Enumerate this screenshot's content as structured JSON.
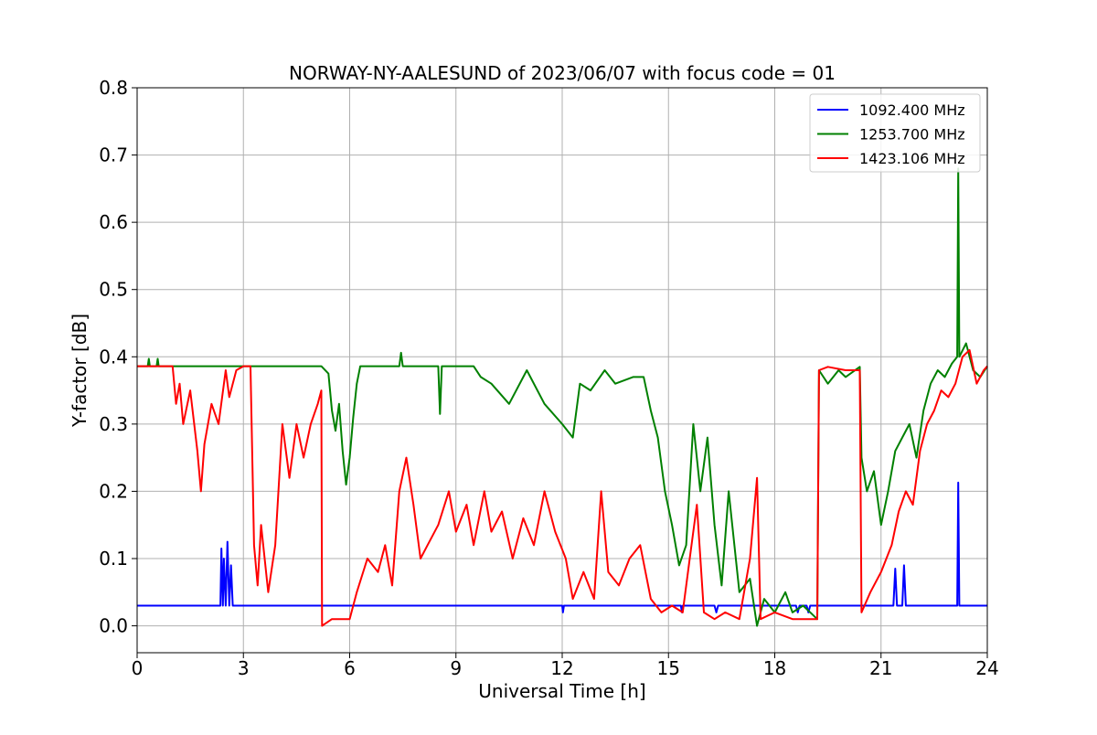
{
  "chart_data": {
    "type": "line",
    "title": "NORWAY-NY-AALESUND of 2023/06/07 with focus code = 01",
    "xlabel": "Universal Time [h]",
    "ylabel": "Y-factor [dB]",
    "xlim": [
      0,
      24
    ],
    "ylim": [
      -0.04,
      0.8
    ],
    "xticks": [
      0,
      3,
      6,
      9,
      12,
      15,
      18,
      21,
      24
    ],
    "yticks": [
      0.0,
      0.1,
      0.2,
      0.3,
      0.4,
      0.5,
      0.6,
      0.7,
      0.8
    ],
    "xtick_labels": [
      "0",
      "3",
      "6",
      "9",
      "12",
      "15",
      "18",
      "21",
      "24"
    ],
    "ytick_labels": [
      "0.0",
      "0.1",
      "0.2",
      "0.3",
      "0.4",
      "0.5",
      "0.6",
      "0.7",
      "0.8"
    ],
    "grid": true,
    "legend_position": "top-right",
    "series": [
      {
        "name": "1092.400 MHz",
        "color": "#0000ff",
        "points": [
          [
            0,
            0.03
          ],
          [
            2.35,
            0.03
          ],
          [
            2.38,
            0.115
          ],
          [
            2.42,
            0.03
          ],
          [
            2.45,
            0.1
          ],
          [
            2.5,
            0.03
          ],
          [
            2.55,
            0.125
          ],
          [
            2.6,
            0.03
          ],
          [
            2.65,
            0.09
          ],
          [
            2.7,
            0.03
          ],
          [
            12.0,
            0.03
          ],
          [
            12.02,
            0.02
          ],
          [
            12.05,
            0.03
          ],
          [
            15.35,
            0.03
          ],
          [
            15.38,
            0.02
          ],
          [
            15.4,
            0.03
          ],
          [
            16.3,
            0.03
          ],
          [
            16.35,
            0.02
          ],
          [
            16.4,
            0.03
          ],
          [
            18.6,
            0.03
          ],
          [
            18.65,
            0.02
          ],
          [
            18.7,
            0.03
          ],
          [
            18.9,
            0.03
          ],
          [
            18.95,
            0.02
          ],
          [
            19.0,
            0.03
          ],
          [
            21.35,
            0.03
          ],
          [
            21.4,
            0.085
          ],
          [
            21.45,
            0.03
          ],
          [
            21.6,
            0.03
          ],
          [
            21.65,
            0.09
          ],
          [
            21.7,
            0.03
          ],
          [
            23.15,
            0.03
          ],
          [
            23.18,
            0.213
          ],
          [
            23.21,
            0.03
          ],
          [
            24,
            0.03
          ]
        ]
      },
      {
        "name": "1253.700 MHz",
        "color": "#008000",
        "points": [
          [
            0,
            0.386
          ],
          [
            0.3,
            0.386
          ],
          [
            0.33,
            0.397
          ],
          [
            0.36,
            0.386
          ],
          [
            0.55,
            0.386
          ],
          [
            0.58,
            0.397
          ],
          [
            0.61,
            0.386
          ],
          [
            5.2,
            0.386
          ],
          [
            5.4,
            0.375
          ],
          [
            5.5,
            0.32
          ],
          [
            5.6,
            0.29
          ],
          [
            5.7,
            0.33
          ],
          [
            5.8,
            0.26
          ],
          [
            5.9,
            0.21
          ],
          [
            6.0,
            0.25
          ],
          [
            6.1,
            0.31
          ],
          [
            6.2,
            0.36
          ],
          [
            6.3,
            0.386
          ],
          [
            7.4,
            0.386
          ],
          [
            7.45,
            0.406
          ],
          [
            7.5,
            0.386
          ],
          [
            8.5,
            0.386
          ],
          [
            8.55,
            0.315
          ],
          [
            8.6,
            0.386
          ],
          [
            9.5,
            0.386
          ],
          [
            9.7,
            0.37
          ],
          [
            10.0,
            0.36
          ],
          [
            10.5,
            0.33
          ],
          [
            11.0,
            0.38
          ],
          [
            11.5,
            0.33
          ],
          [
            12.0,
            0.3
          ],
          [
            12.3,
            0.28
          ],
          [
            12.5,
            0.36
          ],
          [
            12.8,
            0.35
          ],
          [
            13.2,
            0.38
          ],
          [
            13.5,
            0.36
          ],
          [
            14.0,
            0.37
          ],
          [
            14.3,
            0.37
          ],
          [
            14.5,
            0.32
          ],
          [
            14.7,
            0.28
          ],
          [
            14.9,
            0.2
          ],
          [
            15.1,
            0.15
          ],
          [
            15.3,
            0.09
          ],
          [
            15.5,
            0.12
          ],
          [
            15.7,
            0.3
          ],
          [
            15.9,
            0.2
          ],
          [
            16.1,
            0.28
          ],
          [
            16.3,
            0.15
          ],
          [
            16.5,
            0.06
          ],
          [
            16.7,
            0.2
          ],
          [
            17.0,
            0.05
          ],
          [
            17.3,
            0.07
          ],
          [
            17.5,
            0.0
          ],
          [
            17.7,
            0.04
          ],
          [
            18.0,
            0.02
          ],
          [
            18.3,
            0.05
          ],
          [
            18.5,
            0.02
          ],
          [
            18.8,
            0.03
          ],
          [
            19.2,
            0.01
          ],
          [
            19.25,
            0.38
          ],
          [
            19.5,
            0.36
          ],
          [
            19.8,
            0.38
          ],
          [
            20.0,
            0.37
          ],
          [
            20.4,
            0.385
          ],
          [
            20.45,
            0.25
          ],
          [
            20.6,
            0.2
          ],
          [
            20.8,
            0.23
          ],
          [
            21.0,
            0.15
          ],
          [
            21.2,
            0.2
          ],
          [
            21.4,
            0.26
          ],
          [
            21.6,
            0.28
          ],
          [
            21.8,
            0.3
          ],
          [
            22.0,
            0.25
          ],
          [
            22.2,
            0.32
          ],
          [
            22.4,
            0.36
          ],
          [
            22.6,
            0.38
          ],
          [
            22.8,
            0.37
          ],
          [
            23.0,
            0.39
          ],
          [
            23.15,
            0.4
          ],
          [
            23.18,
            0.68
          ],
          [
            23.21,
            0.4
          ],
          [
            23.4,
            0.42
          ],
          [
            23.6,
            0.38
          ],
          [
            23.8,
            0.37
          ],
          [
            24,
            0.386
          ]
        ]
      },
      {
        "name": "1423.106 MHz",
        "color": "#ff0000",
        "points": [
          [
            0,
            0.386
          ],
          [
            1.0,
            0.386
          ],
          [
            1.1,
            0.33
          ],
          [
            1.2,
            0.36
          ],
          [
            1.3,
            0.3
          ],
          [
            1.5,
            0.35
          ],
          [
            1.7,
            0.26
          ],
          [
            1.8,
            0.2
          ],
          [
            1.9,
            0.27
          ],
          [
            2.1,
            0.33
          ],
          [
            2.3,
            0.3
          ],
          [
            2.5,
            0.38
          ],
          [
            2.6,
            0.34
          ],
          [
            2.8,
            0.38
          ],
          [
            3.0,
            0.386
          ],
          [
            3.2,
            0.386
          ],
          [
            3.3,
            0.12
          ],
          [
            3.4,
            0.06
          ],
          [
            3.5,
            0.15
          ],
          [
            3.7,
            0.05
          ],
          [
            3.9,
            0.12
          ],
          [
            4.1,
            0.3
          ],
          [
            4.3,
            0.22
          ],
          [
            4.5,
            0.3
          ],
          [
            4.7,
            0.25
          ],
          [
            4.9,
            0.3
          ],
          [
            5.1,
            0.33
          ],
          [
            5.2,
            0.35
          ],
          [
            5.22,
            0.0
          ],
          [
            5.5,
            0.01
          ],
          [
            6.0,
            0.01
          ],
          [
            6.2,
            0.05
          ],
          [
            6.5,
            0.1
          ],
          [
            6.8,
            0.08
          ],
          [
            7.0,
            0.12
          ],
          [
            7.2,
            0.06
          ],
          [
            7.4,
            0.2
          ],
          [
            7.6,
            0.25
          ],
          [
            7.8,
            0.18
          ],
          [
            8.0,
            0.1
          ],
          [
            8.2,
            0.12
          ],
          [
            8.5,
            0.15
          ],
          [
            8.8,
            0.2
          ],
          [
            9.0,
            0.14
          ],
          [
            9.3,
            0.18
          ],
          [
            9.5,
            0.12
          ],
          [
            9.8,
            0.2
          ],
          [
            10.0,
            0.14
          ],
          [
            10.3,
            0.17
          ],
          [
            10.6,
            0.1
          ],
          [
            10.9,
            0.16
          ],
          [
            11.2,
            0.12
          ],
          [
            11.5,
            0.2
          ],
          [
            11.8,
            0.14
          ],
          [
            12.1,
            0.1
          ],
          [
            12.3,
            0.04
          ],
          [
            12.6,
            0.08
          ],
          [
            12.9,
            0.04
          ],
          [
            13.1,
            0.2
          ],
          [
            13.3,
            0.08
          ],
          [
            13.6,
            0.06
          ],
          [
            13.9,
            0.1
          ],
          [
            14.2,
            0.12
          ],
          [
            14.5,
            0.04
          ],
          [
            14.8,
            0.02
          ],
          [
            15.1,
            0.03
          ],
          [
            15.4,
            0.02
          ],
          [
            15.6,
            0.1
          ],
          [
            15.8,
            0.18
          ],
          [
            16.0,
            0.02
          ],
          [
            16.3,
            0.01
          ],
          [
            16.6,
            0.02
          ],
          [
            17.0,
            0.01
          ],
          [
            17.3,
            0.1
          ],
          [
            17.5,
            0.22
          ],
          [
            17.6,
            0.01
          ],
          [
            18.0,
            0.02
          ],
          [
            18.5,
            0.01
          ],
          [
            19.2,
            0.01
          ],
          [
            19.25,
            0.38
          ],
          [
            19.5,
            0.385
          ],
          [
            20.0,
            0.38
          ],
          [
            20.4,
            0.38
          ],
          [
            20.45,
            0.02
          ],
          [
            20.7,
            0.05
          ],
          [
            21.0,
            0.08
          ],
          [
            21.3,
            0.12
          ],
          [
            21.5,
            0.17
          ],
          [
            21.7,
            0.2
          ],
          [
            21.9,
            0.18
          ],
          [
            22.1,
            0.26
          ],
          [
            22.3,
            0.3
          ],
          [
            22.5,
            0.32
          ],
          [
            22.7,
            0.35
          ],
          [
            22.9,
            0.34
          ],
          [
            23.1,
            0.36
          ],
          [
            23.3,
            0.4
          ],
          [
            23.5,
            0.41
          ],
          [
            23.7,
            0.36
          ],
          [
            23.9,
            0.38
          ],
          [
            24,
            0.386
          ]
        ]
      }
    ]
  }
}
